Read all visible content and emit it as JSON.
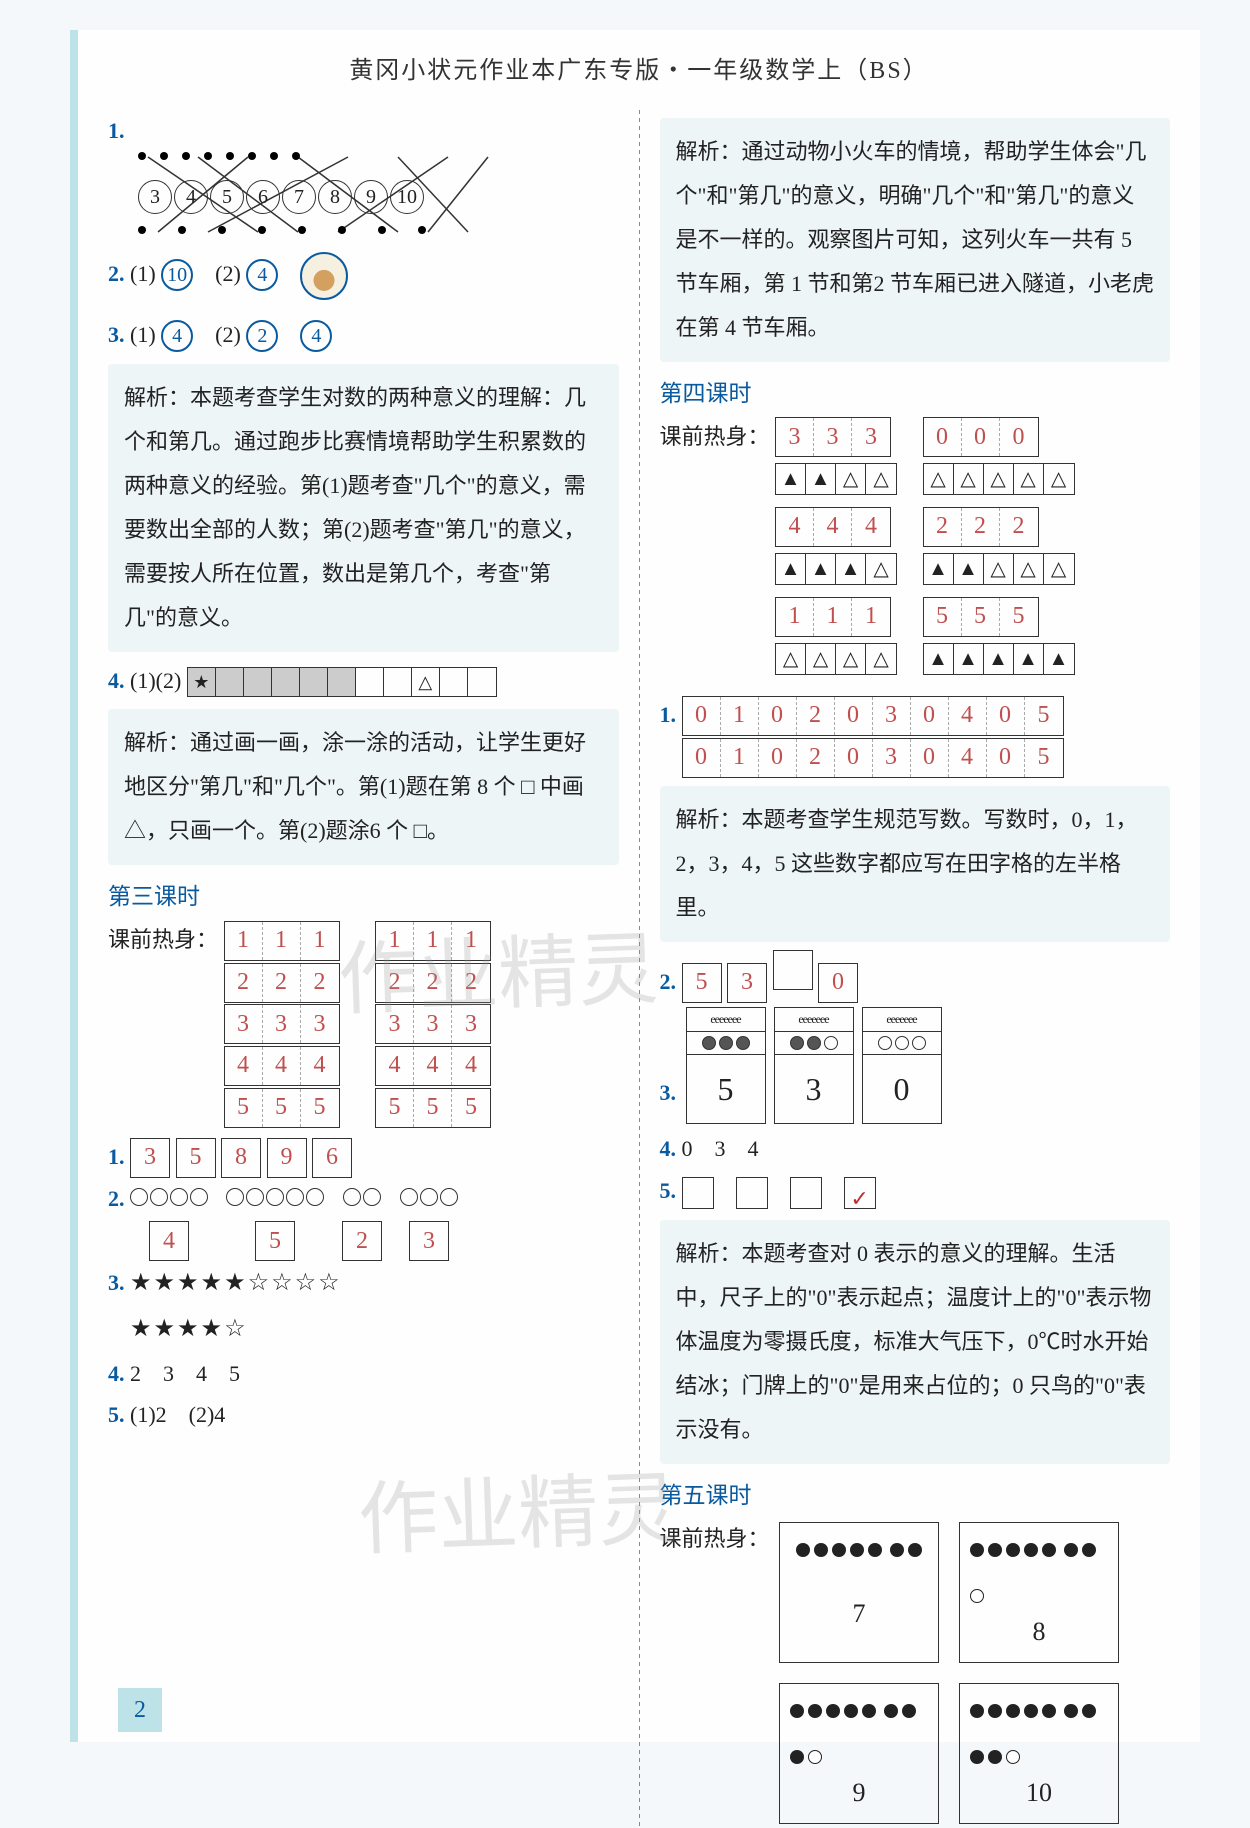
{
  "header": {
    "title": "黄冈小状元作业本广东专版・一年级数学上（BS）"
  },
  "page_number": "2",
  "watermarks": [
    "作业精灵",
    "作业精灵"
  ],
  "left": {
    "q1": {
      "label": "1.",
      "circles": [
        "3",
        "4",
        "5",
        "6",
        "7",
        "8",
        "9",
        "10"
      ]
    },
    "q2": {
      "label": "2.",
      "parts": [
        {
          "p": "(1)",
          "v": "10"
        },
        {
          "p": "(2)",
          "v": "4"
        }
      ]
    },
    "q3": {
      "label": "3.",
      "parts": [
        {
          "p": "(1)",
          "v": "4"
        },
        {
          "p": "(2)",
          "v": "2"
        },
        {
          "p": "",
          "v": "4"
        }
      ]
    },
    "expl3": "解析：本题考查学生对数的两种意义的理解：几个和第几。通过跑步比赛情境帮助学生积累数的两种意义的经验。第(1)题考查\"几个\"的意义，需要数出全部的人数；第(2)题考查\"第几\"的意义，需要按人所在位置，数出是第几个，考查\"第几\"的意义。",
    "q4": {
      "label": "4.",
      "prefix": "(1)(2)",
      "boxes": [
        "★",
        "",
        "",
        "",
        "",
        "",
        "",
        "",
        "△",
        "",
        ""
      ],
      "shaded_indices": [
        0,
        1,
        2,
        3,
        4,
        5
      ]
    },
    "expl4": "解析：通过画一画，涂一涂的活动，让学生更好地区分\"第几\"和\"几个\"。第(1)题在第 8 个 □ 中画△，只画一个。第(2)题涂6 个 □。",
    "lesson3": {
      "title": "第三课时",
      "warmup_label": "课前热身：",
      "warmup_left": [
        [
          "1",
          "1",
          "1"
        ],
        [
          "2",
          "2",
          "2"
        ],
        [
          "3",
          "3",
          "3"
        ],
        [
          "4",
          "4",
          "4"
        ],
        [
          "5",
          "5",
          "5"
        ]
      ],
      "warmup_right": [
        [
          "1",
          "1",
          "1"
        ],
        [
          "2",
          "2",
          "2"
        ],
        [
          "3",
          "3",
          "3"
        ],
        [
          "4",
          "4",
          "4"
        ],
        [
          "5",
          "5",
          "5"
        ]
      ],
      "q1": {
        "label": "1.",
        "vals": [
          "3",
          "5",
          "8",
          "9",
          "6"
        ]
      },
      "q2": {
        "label": "2.",
        "rows": [
          {
            "circles": 4,
            "n": "4"
          },
          {
            "circles": 5,
            "n": "5"
          },
          {
            "circles": 2,
            "n": "2"
          },
          {
            "circles": 3,
            "n": "3"
          }
        ]
      },
      "q3": {
        "label": "3.",
        "row1": "★★★★★☆☆☆☆",
        "row2": "★★★★☆"
      },
      "q4": {
        "label": "4.",
        "vals": [
          "2",
          "3",
          "4",
          "5"
        ]
      },
      "q5": {
        "label": "5.",
        "vals": [
          "(1)2",
          "(2)4"
        ]
      }
    }
  },
  "right": {
    "expl_top": "解析：通过动物小火车的情境，帮助学生体会\"几个\"和\"第几\"的意义，明确\"几个\"和\"第几\"的意义是不一样的。观察图片可知，这列火车一共有 5 节车厢，第 1 节和第2 节车厢已进入隧道，小老虎在第 4 节车厢。",
    "lesson4": {
      "title": "第四课时",
      "warmup_label": "课前热身：",
      "left_pairs": [
        {
          "nums": [
            "3",
            "3",
            "3"
          ],
          "shapes": [
            "▲",
            "▲",
            "△",
            "△"
          ]
        },
        {
          "nums": [
            "4",
            "4",
            "4"
          ],
          "shapes": [
            "▲",
            "▲",
            "▲",
            "△"
          ]
        },
        {
          "nums": [
            "1",
            "1",
            "1"
          ],
          "shapes": [
            "△",
            "△",
            "△",
            "△"
          ]
        }
      ],
      "right_pairs": [
        {
          "nums": [
            "0",
            "0",
            "0"
          ],
          "shapes": [
            "△",
            "△",
            "△",
            "△",
            "△"
          ]
        },
        {
          "nums": [
            "2",
            "2",
            "2"
          ],
          "shapes": [
            "▲",
            "▲",
            "△",
            "△",
            "△"
          ]
        },
        {
          "nums": [
            "5",
            "5",
            "5"
          ],
          "shapes": [
            "▲",
            "▲",
            "▲",
            "▲",
            "▲"
          ]
        }
      ],
      "q1": {
        "label": "1.",
        "row1": [
          "0",
          "1",
          "0",
          "2",
          "0",
          "3",
          "0",
          "4",
          "0",
          "5"
        ],
        "row2": [
          "0",
          "1",
          "0",
          "2",
          "0",
          "3",
          "0",
          "4",
          "0",
          "5"
        ]
      },
      "expl1": "解析：本题考查学生规范写数。写数时，0，1，2，3，4，5 这些数字都应写在田字格的左半格里。",
      "q2": {
        "label": "2.",
        "vals": [
          "5",
          "3",
          "",
          "0"
        ]
      },
      "q3": {
        "label": "3.",
        "cards": [
          {
            "filled": 3,
            "total": 3,
            "big": "5"
          },
          {
            "filled": 2,
            "total": 3,
            "big": "3"
          },
          {
            "filled": 0,
            "total": 3,
            "big": "0"
          }
        ]
      },
      "q4": {
        "label": "4.",
        "vals": [
          "0",
          "3",
          "4"
        ]
      },
      "q5": {
        "label": "5.",
        "checks": [
          false,
          false,
          false,
          true
        ]
      },
      "expl5": "解析：本题考查对 0 表示的意义的理解。生活中，尺子上的\"0\"表示起点；温度计上的\"0\"表示物体温度为零摄氏度，标准大气压下，0℃时水开始结冰；门牌上的\"0\"是用来占位的；0 只鸟的\"0\"表示没有。"
    },
    "lesson5": {
      "title": "第五课时",
      "warmup_label": "课前热身：",
      "cards": [
        {
          "dots": [
            5,
            2
          ],
          "hollow": 0,
          "n": "7"
        },
        {
          "dots": [
            5,
            3
          ],
          "hollow": 1,
          "n": "8"
        },
        {
          "dots": [
            5,
            4
          ],
          "hollow": 1,
          "n": "9"
        },
        {
          "dots": [
            5,
            5
          ],
          "hollow": 1,
          "n": "10"
        }
      ]
    }
  },
  "colors": {
    "accent": "#0a5aa0",
    "explain_bg": "#eef5f7",
    "border_tint": "#bde3e8",
    "handwrite": "#c05050"
  }
}
